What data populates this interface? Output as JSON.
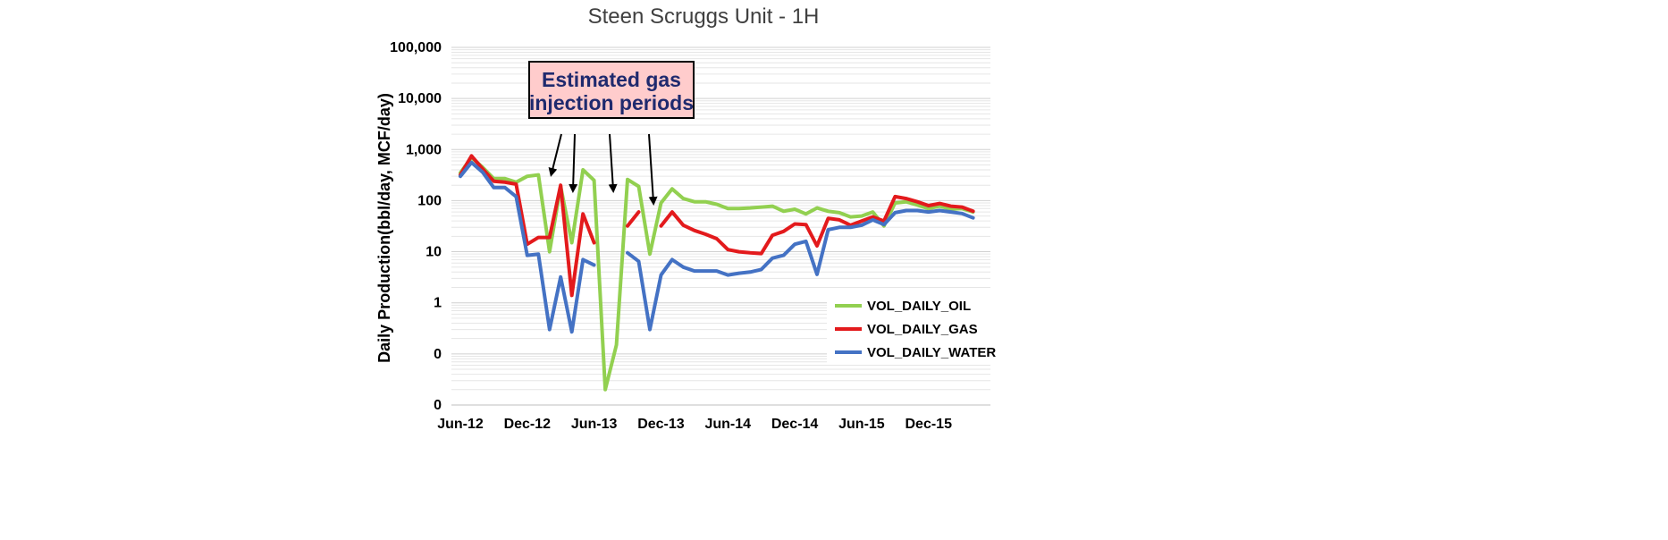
{
  "chart_data": {
    "type": "line",
    "title": "Steen Scruggs Unit - 1H",
    "ylabel": "Daily Production(bbl/day, MCF/day)",
    "xlabel": "",
    "y_scale": "log",
    "yticks": [
      {
        "value": 0.01,
        "label": "0"
      },
      {
        "value": 0.1,
        "label": "0"
      },
      {
        "value": 1,
        "label": "1"
      },
      {
        "value": 10,
        "label": "10"
      },
      {
        "value": 100,
        "label": "100"
      },
      {
        "value": 1000,
        "label": "1,000"
      },
      {
        "value": 10000,
        "label": "10,000"
      },
      {
        "value": 100000,
        "label": "100,000"
      }
    ],
    "ylim": [
      0.01,
      100000
    ],
    "x_months": [
      "2012-06",
      "2012-07",
      "2012-08",
      "2012-09",
      "2012-10",
      "2012-11",
      "2012-12",
      "2013-01",
      "2013-02",
      "2013-03",
      "2013-04",
      "2013-05",
      "2013-06",
      "2013-07",
      "2013-08",
      "2013-09",
      "2013-10",
      "2013-11",
      "2013-12",
      "2014-01",
      "2014-02",
      "2014-03",
      "2014-04",
      "2014-05",
      "2014-06",
      "2014-07",
      "2014-08",
      "2014-09",
      "2014-10",
      "2014-11",
      "2014-12",
      "2015-01",
      "2015-02",
      "2015-03",
      "2015-04",
      "2015-05",
      "2015-06",
      "2015-07",
      "2015-08",
      "2015-09",
      "2015-10",
      "2015-11",
      "2015-12",
      "2016-01",
      "2016-02",
      "2016-03",
      "2016-04"
    ],
    "xticks": [
      {
        "month": "2012-06",
        "label": "Jun-12"
      },
      {
        "month": "2012-12",
        "label": "Dec-12"
      },
      {
        "month": "2013-06",
        "label": "Jun-13"
      },
      {
        "month": "2013-12",
        "label": "Dec-13"
      },
      {
        "month": "2014-06",
        "label": "Jun-14"
      },
      {
        "month": "2014-12",
        "label": "Dec-14"
      },
      {
        "month": "2015-06",
        "label": "Jun-15"
      },
      {
        "month": "2015-12",
        "label": "Dec-15"
      }
    ],
    "grid": true,
    "legend_position": "bottom-right",
    "series": [
      {
        "name": "VOL_DAILY_OIL",
        "color": "#92d050",
        "values": [
          350,
          700,
          450,
          270,
          270,
          230,
          300,
          320,
          10,
          190,
          15,
          400,
          250,
          0.02,
          0.15,
          260,
          190,
          9,
          90,
          170,
          110,
          95,
          95,
          85,
          70,
          70,
          72,
          75,
          78,
          62,
          68,
          55,
          72,
          62,
          58,
          48,
          50,
          60,
          32,
          90,
          95,
          82,
          70,
          78,
          68,
          70,
          60
        ]
      },
      {
        "name": "VOL_DAILY_GAS",
        "color": "#e31a1c",
        "values": [
          320,
          750,
          420,
          240,
          230,
          210,
          14,
          19,
          19,
          200,
          1.4,
          55,
          15,
          null,
          null,
          32,
          60,
          null,
          32,
          60,
          33,
          26,
          22,
          18,
          11,
          10,
          9.5,
          9.2,
          21,
          25,
          35,
          34,
          13,
          45,
          42,
          33,
          40,
          48,
          40,
          120,
          110,
          95,
          80,
          88,
          78,
          75,
          62
        ]
      },
      {
        "name": "VOL_DAILY_WATER",
        "color": "#4472c4",
        "values": [
          300,
          560,
          360,
          180,
          180,
          120,
          8.5,
          9,
          0.3,
          3.2,
          0.27,
          7,
          5.5,
          null,
          null,
          9.5,
          6.5,
          0.3,
          3.5,
          7,
          5,
          4.2,
          4.2,
          4.2,
          3.5,
          3.8,
          4,
          4.5,
          7.5,
          8.5,
          14,
          16,
          3.6,
          27,
          30,
          30,
          33,
          42,
          34,
          58,
          64,
          64,
          60,
          64,
          60,
          56,
          46
        ]
      }
    ]
  },
  "annotation": {
    "text_line1": "Estimated gas",
    "text_line2": "injection periods",
    "box_fill": "#ffcccc",
    "box_border": "#000000"
  }
}
